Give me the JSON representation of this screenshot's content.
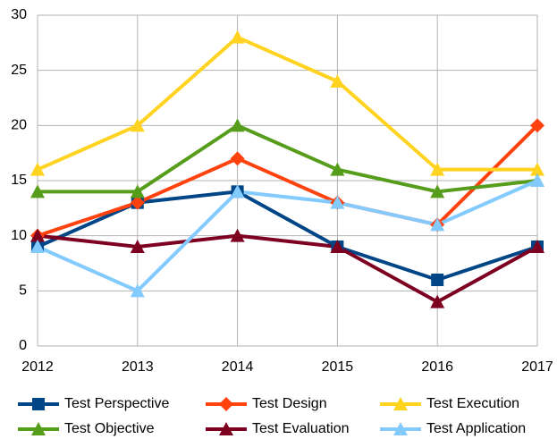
{
  "chart_data": {
    "type": "line",
    "categories": [
      "2012",
      "2013",
      "2014",
      "2015",
      "2016",
      "2017"
    ],
    "ylim": [
      0,
      30
    ],
    "yticks": [
      0,
      5,
      10,
      15,
      20,
      25,
      30
    ],
    "grid": true,
    "series": [
      {
        "name": "Test Perspective",
        "color": "#004586",
        "marker": "square",
        "values": [
          9,
          13,
          14,
          9,
          6,
          9
        ]
      },
      {
        "name": "Test Design",
        "color": "#ff420e",
        "marker": "diamond",
        "values": [
          10,
          13,
          17,
          13,
          11,
          20
        ]
      },
      {
        "name": "Test Execution",
        "color": "#ffd320",
        "marker": "triangle",
        "values": [
          16,
          20,
          28,
          24,
          16,
          16
        ]
      },
      {
        "name": "Test Objective",
        "color": "#579d1c",
        "marker": "triangle",
        "values": [
          14,
          14,
          20,
          16,
          14,
          15
        ]
      },
      {
        "name": "Test Evaluation",
        "color": "#7e0021",
        "marker": "triangle",
        "values": [
          10,
          9,
          10,
          9,
          4,
          9
        ]
      },
      {
        "name": "Test Application",
        "color": "#83caff",
        "marker": "triangle",
        "values": [
          9,
          5,
          14,
          13,
          11,
          15
        ]
      }
    ]
  }
}
